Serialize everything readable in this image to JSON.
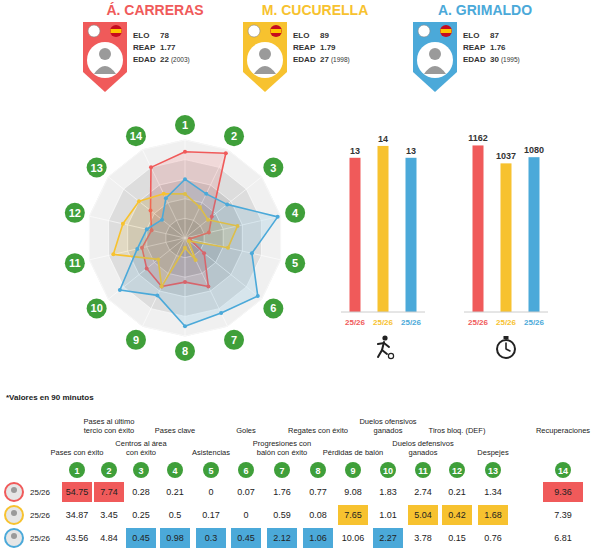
{
  "players": [
    {
      "name": "Á. CARRERAS",
      "color": "#f05a5a",
      "stats": [
        {
          "label": "ELO",
          "value": 78
        },
        {
          "label": "REAP",
          "value": 1.77
        },
        {
          "label": "EDAD",
          "value": 22,
          "extra": "(2003)"
        }
      ]
    },
    {
      "name": "M. CUCURELLA",
      "color": "#f7c22f",
      "stats": [
        {
          "label": "ELO",
          "value": 89
        },
        {
          "label": "REAP",
          "value": 1.79
        },
        {
          "label": "EDAD",
          "value": 27,
          "extra": "(1998)"
        }
      ]
    },
    {
      "name": "A. GRIMALDO",
      "color": "#4ba9d9",
      "stats": [
        {
          "label": "ELO",
          "value": 87
        },
        {
          "label": "REAP",
          "value": 1.76
        },
        {
          "label": "EDAD",
          "value": 30,
          "extra": "(1995)"
        }
      ]
    }
  ],
  "chart_data": [
    {
      "type": "radar",
      "categories": [
        "1",
        "2",
        "3",
        "4",
        "5",
        "6",
        "7",
        "8",
        "9",
        "10",
        "11",
        "12",
        "13",
        "14"
      ],
      "series": [
        {
          "color": "#f05a5a",
          "values": [
            88,
            96,
            35,
            25,
            5,
            25,
            55,
            45,
            55,
            50,
            45,
            35,
            45,
            80
          ]
        },
        {
          "color": "#f7c22f",
          "values": [
            45,
            35,
            30,
            55,
            45,
            5,
            25,
            10,
            55,
            35,
            75,
            65,
            60,
            50
          ]
        },
        {
          "color": "#4ba9d9",
          "values": [
            60,
            50,
            55,
            97,
            70,
            95,
            85,
            90,
            65,
            85,
            50,
            40,
            30,
            45
          ]
        }
      ],
      "ylim": [
        0,
        100
      ],
      "yticks": [
        20,
        40,
        60,
        80,
        100
      ],
      "grid": true,
      "tick_labels": false
    },
    {
      "type": "bar",
      "categories": [
        "25/26",
        "25/26",
        "25/26"
      ],
      "values": [
        13,
        14,
        13
      ],
      "colors": [
        "#f05a5a",
        "#f7c22f",
        "#4ba9d9"
      ],
      "ylim": [
        0,
        14.5
      ],
      "data_labels": true,
      "tick_labels": "x"
    },
    {
      "type": "bar",
      "categories": [
        "25/26",
        "25/26",
        "25/26"
      ],
      "values": [
        1162,
        1037,
        1080
      ],
      "colors": [
        "#f05a5a",
        "#f7c22f",
        "#4ba9d9"
      ],
      "ylim": [
        0,
        1200
      ],
      "data_labels": true,
      "tick_labels": "x"
    }
  ],
  "table": {
    "note": "*Valores en 90 minutos",
    "columns": [
      {
        "num": "1",
        "label": "Pases con éxito"
      },
      {
        "num": "2",
        "label": "Pases al último tercio con éxito"
      },
      {
        "num": "3",
        "label": "Centros al área con éxito"
      },
      {
        "num": "4",
        "label": "Pases clave"
      },
      {
        "num": "5",
        "label": "Asistencias"
      },
      {
        "num": "6",
        "label": "Goles"
      },
      {
        "num": "7",
        "label": "Progresiones con balón con éxito"
      },
      {
        "num": "8",
        "label": "Regates con éxito"
      },
      {
        "num": "9",
        "label": "Pérdidas de balón"
      },
      {
        "num": "10",
        "label": "Duelos ofensivos ganados"
      },
      {
        "num": "11",
        "label": "Duelos defensivos ganados"
      },
      {
        "num": "12",
        "label": "Tiros bloq. (DEF)"
      },
      {
        "num": "13",
        "label": "Despejes"
      },
      {
        "num": "14",
        "label": "Recuperaciones"
      }
    ],
    "rows": [
      {
        "season": "25/26",
        "color": "#f05a5a",
        "values": [
          54.75,
          7.74,
          0.28,
          0.21,
          0,
          0.07,
          1.76,
          0.77,
          9.08,
          1.83,
          2.74,
          0.21,
          1.34,
          9.36
        ],
        "highlight": [
          0,
          1,
          13
        ]
      },
      {
        "season": "25/26",
        "color": "#f7c22f",
        "values": [
          34.87,
          3.45,
          0.25,
          0.5,
          0.17,
          0,
          0.59,
          0.08,
          7.65,
          1.01,
          5.04,
          0.42,
          1.68,
          7.39
        ],
        "highlight": [
          8,
          10,
          11,
          12
        ]
      },
      {
        "season": "25/26",
        "color": "#4ba9d9",
        "values": [
          43.56,
          4.84,
          0.45,
          0.98,
          0.3,
          0.45,
          2.12,
          1.06,
          10.06,
          2.27,
          3.78,
          0.15,
          0.76,
          6.81
        ],
        "highlight": [
          2,
          3,
          4,
          5,
          6,
          7,
          9
        ]
      }
    ]
  }
}
